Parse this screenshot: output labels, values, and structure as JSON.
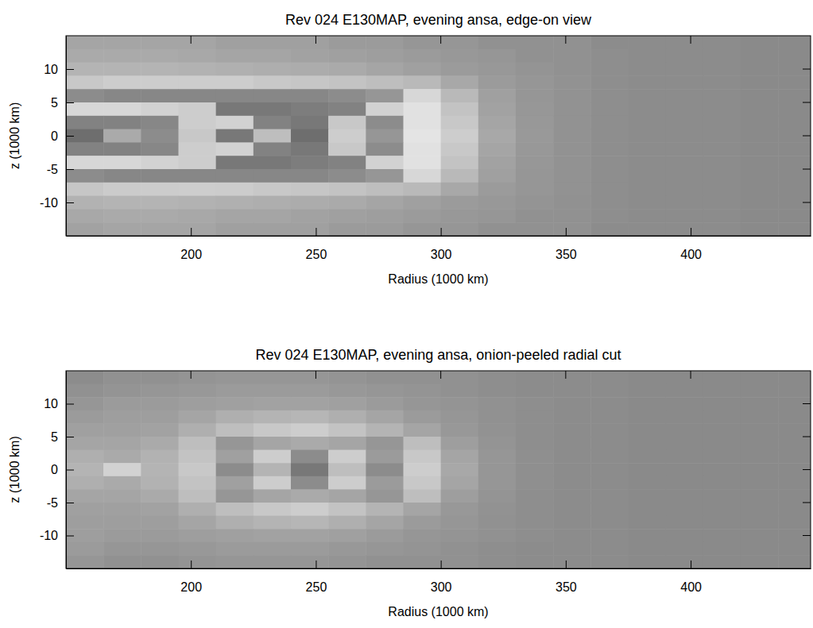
{
  "chart_data": [
    {
      "type": "heatmap",
      "title": "Rev 024 E130MAP, evening ansa, edge-on view",
      "x_label": "Radius (1000 km)",
      "y_label": "z (1000 km)",
      "xlim": [
        150,
        448
      ],
      "ylim": [
        -15,
        15
      ],
      "xticks": [
        200,
        250,
        300,
        350,
        400
      ],
      "yticks": [
        -10,
        -5,
        0,
        5,
        10
      ],
      "x": [
        157.5,
        172.5,
        187.5,
        202.5,
        217.5,
        232.5,
        247.5,
        262.5,
        277.5,
        292.5,
        307.5,
        322.5,
        337.5,
        352.5,
        367.5,
        382.5,
        397.5,
        412.5,
        427.5,
        442.5
      ],
      "y": [
        14,
        12,
        10,
        8,
        6,
        4,
        2,
        0,
        -2,
        -4,
        -6,
        -8,
        -10,
        -12,
        -14
      ],
      "cells": [
        [
          165,
          165,
          165,
          165,
          160,
          160,
          160,
          155,
          155,
          150,
          150,
          145,
          145,
          145,
          140,
          140,
          140,
          140,
          138,
          138
        ],
        [
          170,
          170,
          170,
          168,
          165,
          165,
          162,
          160,
          158,
          155,
          152,
          150,
          145,
          145,
          142,
          140,
          140,
          140,
          138,
          138
        ],
        [
          180,
          180,
          180,
          178,
          176,
          174,
          172,
          170,
          165,
          160,
          155,
          152,
          148,
          145,
          142,
          140,
          140,
          140,
          138,
          138
        ],
        [
          200,
          205,
          205,
          205,
          205,
          200,
          198,
          195,
          190,
          185,
          168,
          155,
          150,
          146,
          142,
          140,
          140,
          140,
          138,
          138
        ],
        [
          140,
          135,
          135,
          135,
          135,
          135,
          135,
          140,
          150,
          215,
          185,
          160,
          150,
          146,
          142,
          140,
          140,
          140,
          138,
          138
        ],
        [
          215,
          215,
          210,
          205,
          120,
          120,
          125,
          130,
          210,
          225,
          195,
          162,
          151,
          146,
          142,
          140,
          140,
          140,
          138,
          138
        ],
        [
          130,
          130,
          135,
          205,
          210,
          130,
          120,
          200,
          140,
          225,
          200,
          165,
          152,
          146,
          142,
          140,
          140,
          140,
          138,
          138
        ],
        [
          110,
          170,
          140,
          200,
          120,
          190,
          110,
          205,
          150,
          228,
          205,
          168,
          153,
          146,
          142,
          140,
          140,
          140,
          138,
          138
        ],
        [
          130,
          130,
          135,
          205,
          210,
          130,
          120,
          200,
          140,
          225,
          200,
          165,
          152,
          146,
          142,
          140,
          140,
          140,
          138,
          138
        ],
        [
          215,
          215,
          210,
          205,
          120,
          120,
          125,
          130,
          210,
          225,
          195,
          162,
          151,
          146,
          142,
          140,
          140,
          140,
          138,
          138
        ],
        [
          140,
          135,
          135,
          135,
          135,
          135,
          135,
          140,
          150,
          215,
          185,
          160,
          150,
          146,
          142,
          140,
          140,
          140,
          138,
          138
        ],
        [
          198,
          203,
          204,
          205,
          204,
          200,
          198,
          195,
          190,
          185,
          168,
          155,
          150,
          146,
          142,
          140,
          140,
          140,
          138,
          138
        ],
        [
          178,
          180,
          180,
          178,
          176,
          174,
          172,
          170,
          165,
          160,
          155,
          152,
          148,
          145,
          142,
          140,
          140,
          140,
          138,
          138
        ],
        [
          168,
          170,
          170,
          168,
          165,
          165,
          162,
          160,
          158,
          155,
          152,
          150,
          145,
          145,
          142,
          140,
          140,
          140,
          138,
          138
        ],
        [
          162,
          165,
          165,
          165,
          160,
          160,
          160,
          155,
          155,
          150,
          150,
          145,
          145,
          145,
          140,
          140,
          140,
          140,
          138,
          138
        ]
      ]
    },
    {
      "type": "heatmap",
      "title": "Rev 024 E130MAP, evening ansa, onion-peeled radial cut",
      "x_label": "Radius (1000 km)",
      "y_label": "z (1000 km)",
      "xlim": [
        150,
        448
      ],
      "ylim": [
        -15,
        15
      ],
      "xticks": [
        200,
        250,
        300,
        350,
        400
      ],
      "yticks": [
        -10,
        -5,
        0,
        5,
        10
      ],
      "x": [
        157.5,
        172.5,
        187.5,
        202.5,
        217.5,
        232.5,
        247.5,
        262.5,
        277.5,
        292.5,
        307.5,
        322.5,
        337.5,
        352.5,
        367.5,
        382.5,
        397.5,
        412.5,
        427.5,
        442.5
      ],
      "y": [
        14,
        12,
        10,
        8,
        6,
        4,
        2,
        0,
        -2,
        -4,
        -6,
        -8,
        -10,
        -12,
        -14
      ],
      "cells": [
        [
          140,
          145,
          145,
          148,
          150,
          150,
          150,
          148,
          145,
          145,
          145,
          142,
          140,
          140,
          140,
          138,
          138,
          138,
          138,
          138
        ],
        [
          145,
          148,
          150,
          152,
          155,
          155,
          155,
          152,
          150,
          148,
          145,
          142,
          140,
          140,
          140,
          138,
          138,
          138,
          138,
          138
        ],
        [
          150,
          155,
          155,
          158,
          160,
          162,
          162,
          160,
          155,
          150,
          148,
          145,
          142,
          140,
          140,
          138,
          138,
          138,
          138,
          138
        ],
        [
          155,
          158,
          158,
          165,
          175,
          180,
          182,
          175,
          165,
          155,
          150,
          145,
          142,
          140,
          140,
          138,
          138,
          138,
          138,
          138
        ],
        [
          160,
          160,
          162,
          175,
          190,
          200,
          205,
          195,
          180,
          165,
          152,
          146,
          142,
          140,
          140,
          138,
          138,
          138,
          138,
          138
        ],
        [
          165,
          165,
          170,
          190,
          150,
          165,
          170,
          165,
          150,
          190,
          158,
          148,
          142,
          140,
          140,
          138,
          138,
          138,
          138,
          138
        ],
        [
          175,
          170,
          178,
          195,
          160,
          205,
          140,
          205,
          155,
          200,
          165,
          150,
          143,
          140,
          140,
          138,
          138,
          138,
          138,
          138
        ],
        [
          180,
          210,
          180,
          200,
          140,
          180,
          120,
          190,
          140,
          205,
          168,
          150,
          143,
          140,
          140,
          138,
          138,
          138,
          138,
          138
        ],
        [
          175,
          170,
          178,
          195,
          160,
          205,
          140,
          205,
          155,
          200,
          165,
          150,
          143,
          140,
          140,
          138,
          138,
          138,
          138,
          138
        ],
        [
          165,
          165,
          170,
          190,
          150,
          165,
          170,
          165,
          150,
          190,
          158,
          148,
          142,
          140,
          140,
          138,
          138,
          138,
          138,
          138
        ],
        [
          160,
          160,
          162,
          175,
          190,
          200,
          205,
          195,
          180,
          165,
          152,
          146,
          142,
          140,
          140,
          138,
          138,
          138,
          138,
          138
        ],
        [
          158,
          158,
          158,
          165,
          175,
          180,
          182,
          175,
          165,
          155,
          150,
          145,
          142,
          140,
          140,
          138,
          138,
          138,
          138,
          138
        ],
        [
          158,
          155,
          155,
          158,
          160,
          162,
          162,
          160,
          155,
          150,
          148,
          145,
          142,
          140,
          140,
          138,
          138,
          138,
          138,
          138
        ],
        [
          155,
          150,
          150,
          152,
          155,
          155,
          155,
          152,
          150,
          148,
          145,
          142,
          140,
          140,
          140,
          138,
          138,
          138,
          138,
          138
        ],
        [
          150,
          145,
          145,
          148,
          150,
          150,
          150,
          148,
          145,
          145,
          145,
          142,
          140,
          140,
          140,
          138,
          138,
          138,
          138,
          138
        ]
      ]
    }
  ]
}
